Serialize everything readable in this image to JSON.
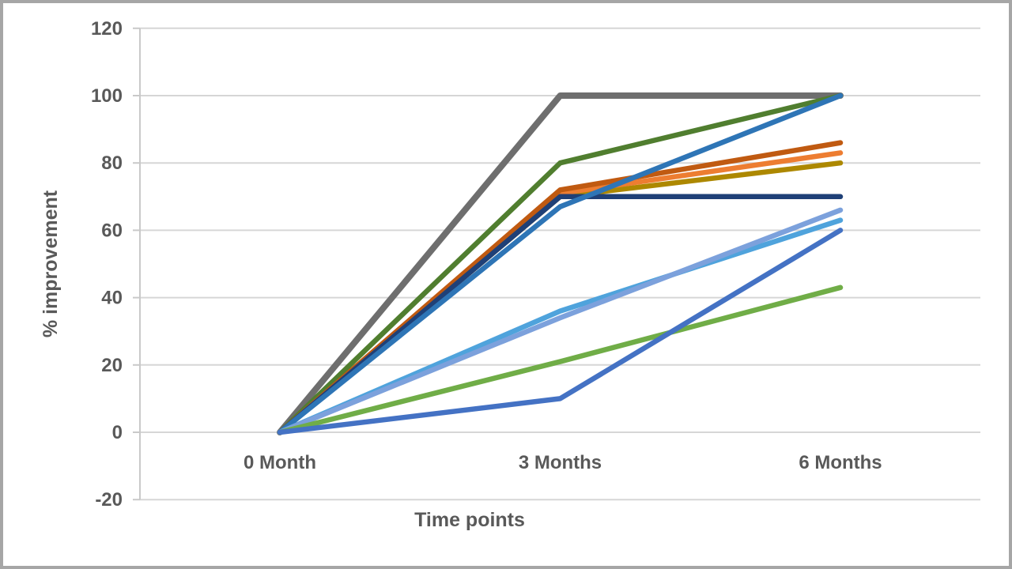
{
  "chart_data": {
    "type": "line",
    "title": "",
    "xlabel": "Time points",
    "ylabel": "% improvement",
    "categories": [
      "0 Month",
      "3 Months",
      "6 Months"
    ],
    "x": [
      0,
      3,
      6
    ],
    "ylim": [
      -20,
      120
    ],
    "yticks": [
      120,
      100,
      80,
      60,
      40,
      20,
      0,
      -20
    ],
    "grid": "horizontal",
    "legend_position": "none",
    "text_color": "#595959",
    "grid_color": "#d6d6d6",
    "axis_color": "#c9c9c9",
    "background_color": "#ffffff",
    "series": [
      {
        "name": "series-gray",
        "color": "#6E6E6E",
        "width": 8,
        "values": [
          0,
          100,
          100
        ]
      },
      {
        "name": "series-dark-green",
        "color": "#507E2F",
        "width": 6.5,
        "values": [
          0,
          80,
          100
        ]
      },
      {
        "name": "series-dark-gold",
        "color": "#AD8800",
        "width": 6.5,
        "values": [
          0,
          70,
          80
        ]
      },
      {
        "name": "series-orange",
        "color": "#ED7D31",
        "width": 6.5,
        "values": [
          0,
          71,
          83
        ]
      },
      {
        "name": "series-dark-orange",
        "color": "#C05A11",
        "width": 6.5,
        "values": [
          0,
          72,
          86
        ]
      },
      {
        "name": "series-navy",
        "color": "#1F4077",
        "width": 6.5,
        "values": [
          0,
          70,
          70
        ]
      },
      {
        "name": "series-steel-blue",
        "color": "#2E75B6",
        "width": 6.5,
        "values": [
          0,
          67,
          100
        ]
      },
      {
        "name": "series-sky-blue",
        "color": "#4FA3DC",
        "width": 6.5,
        "values": [
          0,
          36,
          63
        ]
      },
      {
        "name": "series-cornflower",
        "color": "#7CA1DC",
        "width": 6.5,
        "values": [
          0,
          34,
          66
        ]
      },
      {
        "name": "series-green",
        "color": "#70AD47",
        "width": 6.5,
        "values": [
          0,
          21,
          43
        ]
      },
      {
        "name": "series-royal-blue",
        "color": "#4472C4",
        "width": 6.5,
        "values": [
          0,
          10,
          60
        ]
      }
    ]
  }
}
